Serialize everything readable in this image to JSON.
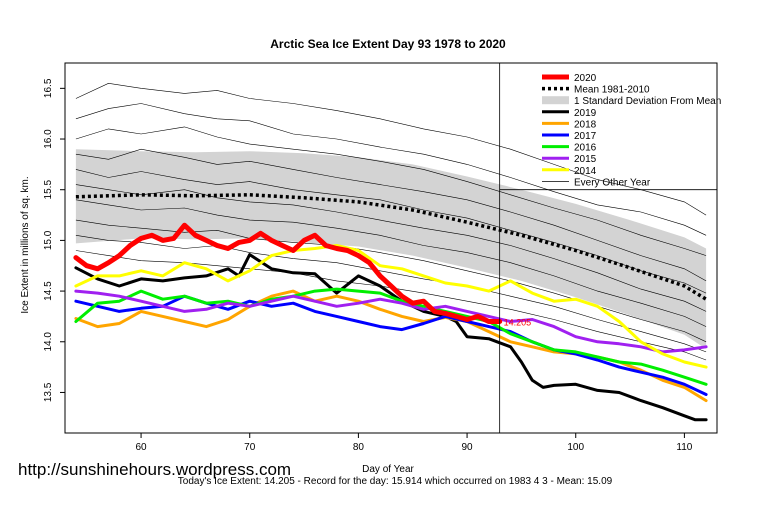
{
  "chart_data": {
    "type": "line",
    "title": "Arctic Sea Ice Extent Day 93 1978 to 2020",
    "xlabel": "Day of Year",
    "ylabel": "Ice Extent in millions of sq. km.",
    "xlim": [
      53,
      113
    ],
    "ylim": [
      13.1,
      16.75
    ],
    "x_ticks": [
      60,
      70,
      80,
      90,
      100,
      110
    ],
    "y_ticks": [
      13.5,
      14.0,
      14.5,
      15.0,
      15.5,
      16.0,
      16.5
    ],
    "current_day": 93,
    "crosshair_y": 15.5,
    "current_value_label": "14.205",
    "legend": [
      {
        "label": "2020",
        "color": "#ff0000",
        "style": "solid-thick"
      },
      {
        "label": "Mean 1981-2010",
        "color": "#000000",
        "style": "dotted"
      },
      {
        "label": "1 Standard Deviation From Mean",
        "color": "#d3d3d3",
        "style": "band"
      },
      {
        "label": "2019",
        "color": "#000000",
        "style": "solid"
      },
      {
        "label": "2018",
        "color": "#ffa500",
        "style": "solid"
      },
      {
        "label": "2017",
        "color": "#0000ff",
        "style": "solid"
      },
      {
        "label": "2016",
        "color": "#00ee00",
        "style": "solid"
      },
      {
        "label": "2015",
        "color": "#a020f0",
        "style": "solid"
      },
      {
        "label": "2014",
        "color": "#ffff00",
        "style": "solid"
      },
      {
        "label": "Every Other Year",
        "color": "#000000",
        "style": "thin"
      }
    ],
    "mean": {
      "x": [
        54,
        60,
        65,
        70,
        75,
        80,
        85,
        90,
        95,
        100,
        105,
        110,
        112
      ],
      "values": [
        15.43,
        15.45,
        15.44,
        15.45,
        15.42,
        15.38,
        15.3,
        15.18,
        15.05,
        14.9,
        14.73,
        14.55,
        14.42
      ]
    },
    "std_band": {
      "x": [
        54,
        60,
        65,
        70,
        75,
        80,
        85,
        90,
        95,
        100,
        105,
        110,
        112
      ],
      "upper": [
        15.9,
        15.88,
        15.87,
        15.88,
        15.86,
        15.82,
        15.75,
        15.63,
        15.5,
        15.36,
        15.2,
        15.03,
        14.92
      ],
      "lower": [
        14.97,
        15.02,
        15.01,
        15.02,
        14.98,
        14.94,
        14.85,
        14.73,
        14.6,
        14.44,
        14.26,
        14.07,
        13.93
      ]
    },
    "series": [
      {
        "name": "2019",
        "color": "#000000",
        "width": 3,
        "x": [
          54,
          56,
          58,
          60,
          62,
          64,
          66,
          68,
          69,
          70,
          72,
          74,
          76,
          78,
          80,
          82,
          84,
          86,
          88,
          89,
          90,
          92,
          93,
          94,
          95,
          96,
          97,
          98,
          100,
          102,
          104,
          106,
          108,
          110,
          111,
          112
        ],
        "values": [
          14.73,
          14.62,
          14.55,
          14.62,
          14.6,
          14.63,
          14.65,
          14.72,
          14.65,
          14.86,
          14.72,
          14.68,
          14.67,
          14.48,
          14.65,
          14.55,
          14.4,
          14.3,
          14.25,
          14.2,
          14.05,
          14.03,
          13.99,
          13.95,
          13.8,
          13.62,
          13.55,
          13.57,
          13.58,
          13.52,
          13.5,
          13.42,
          13.35,
          13.27,
          13.23,
          13.23
        ]
      },
      {
        "name": "2018",
        "color": "#ffa500",
        "width": 3,
        "x": [
          54,
          56,
          58,
          60,
          62,
          64,
          66,
          68,
          70,
          72,
          74,
          76,
          78,
          80,
          82,
          84,
          86,
          88,
          90,
          92,
          94,
          96,
          98,
          100,
          102,
          104,
          106,
          108,
          110,
          112
        ],
        "values": [
          14.23,
          14.15,
          14.18,
          14.3,
          14.25,
          14.2,
          14.15,
          14.22,
          14.35,
          14.45,
          14.5,
          14.4,
          14.45,
          14.4,
          14.32,
          14.25,
          14.2,
          14.24,
          14.2,
          14.1,
          14.0,
          13.95,
          13.9,
          13.88,
          13.85,
          13.8,
          13.72,
          13.62,
          13.55,
          13.42
        ]
      },
      {
        "name": "2017",
        "color": "#0000ff",
        "width": 3,
        "x": [
          54,
          56,
          58,
          60,
          62,
          64,
          66,
          68,
          70,
          72,
          74,
          76,
          78,
          80,
          82,
          84,
          86,
          88,
          90,
          92,
          94,
          96,
          98,
          100,
          102,
          104,
          106,
          108,
          110,
          112
        ],
        "values": [
          14.4,
          14.35,
          14.3,
          14.33,
          14.35,
          14.45,
          14.38,
          14.32,
          14.4,
          14.35,
          14.38,
          14.3,
          14.25,
          14.2,
          14.15,
          14.12,
          14.18,
          14.25,
          14.2,
          14.15,
          14.1,
          14.0,
          13.92,
          13.88,
          13.82,
          13.75,
          13.7,
          13.65,
          13.58,
          13.48
        ]
      },
      {
        "name": "2016",
        "color": "#00ee00",
        "width": 3,
        "x": [
          54,
          56,
          58,
          60,
          62,
          64,
          66,
          68,
          70,
          72,
          74,
          76,
          78,
          80,
          82,
          84,
          86,
          88,
          90,
          92,
          94,
          96,
          98,
          100,
          102,
          104,
          106,
          108,
          110,
          112
        ],
        "values": [
          14.2,
          14.38,
          14.4,
          14.5,
          14.42,
          14.45,
          14.38,
          14.4,
          14.35,
          14.42,
          14.45,
          14.5,
          14.52,
          14.5,
          14.48,
          14.4,
          14.35,
          14.3,
          14.25,
          14.2,
          14.08,
          14.0,
          13.92,
          13.9,
          13.85,
          13.8,
          13.78,
          13.72,
          13.65,
          13.58
        ]
      },
      {
        "name": "2015",
        "color": "#a020f0",
        "width": 3,
        "x": [
          54,
          56,
          58,
          60,
          62,
          64,
          66,
          68,
          70,
          72,
          74,
          76,
          78,
          80,
          82,
          84,
          86,
          88,
          90,
          92,
          94,
          96,
          98,
          100,
          102,
          104,
          106,
          108,
          110,
          112
        ],
        "values": [
          14.5,
          14.48,
          14.45,
          14.4,
          14.35,
          14.3,
          14.32,
          14.38,
          14.35,
          14.4,
          14.45,
          14.4,
          14.35,
          14.38,
          14.42,
          14.38,
          14.32,
          14.35,
          14.3,
          14.25,
          14.2,
          14.22,
          14.15,
          14.05,
          14.0,
          13.98,
          13.95,
          13.9,
          13.92,
          13.95
        ]
      },
      {
        "name": "2014",
        "color": "#ffff00",
        "width": 3,
        "x": [
          54,
          56,
          58,
          60,
          62,
          64,
          66,
          68,
          70,
          72,
          74,
          76,
          78,
          80,
          82,
          84,
          86,
          88,
          90,
          92,
          94,
          96,
          98,
          100,
          102,
          104,
          106,
          108,
          110,
          112
        ],
        "values": [
          14.55,
          14.65,
          14.65,
          14.7,
          14.65,
          14.78,
          14.72,
          14.6,
          14.7,
          14.85,
          14.9,
          14.92,
          14.95,
          14.9,
          14.75,
          14.72,
          14.65,
          14.58,
          14.55,
          14.5,
          14.6,
          14.48,
          14.4,
          14.42,
          14.35,
          14.2,
          14.0,
          13.88,
          13.8,
          13.75
        ]
      },
      {
        "name": "2020",
        "color": "#ff0000",
        "width": 5,
        "x": [
          54,
          55,
          56,
          57,
          58,
          59,
          60,
          61,
          62,
          63,
          64,
          65,
          66,
          67,
          68,
          69,
          70,
          71,
          72,
          73,
          74,
          75,
          76,
          77,
          78,
          79,
          80,
          81,
          82,
          83,
          84,
          85,
          86,
          87,
          88,
          89,
          90,
          91,
          92,
          93
        ],
        "values": [
          14.83,
          14.75,
          14.72,
          14.78,
          14.85,
          14.95,
          15.02,
          15.05,
          15.0,
          15.02,
          15.15,
          15.05,
          15.0,
          14.95,
          14.92,
          14.98,
          15.0,
          15.07,
          15.0,
          14.95,
          14.9,
          15.0,
          15.05,
          14.95,
          14.92,
          14.9,
          14.85,
          14.78,
          14.65,
          14.55,
          14.45,
          14.38,
          14.4,
          14.3,
          14.28,
          14.25,
          14.22,
          14.25,
          14.2,
          14.2
        ]
      }
    ],
    "background_years": [
      {
        "x": [
          54,
          57,
          60,
          64,
          67,
          70,
          74,
          78,
          82,
          86,
          90,
          94,
          98,
          102,
          106,
          110,
          112
        ],
        "values": [
          16.4,
          16.55,
          16.5,
          16.45,
          16.48,
          16.4,
          16.35,
          16.28,
          16.2,
          16.1,
          16.02,
          15.9,
          15.75,
          15.6,
          15.5,
          15.38,
          15.25
        ]
      },
      {
        "x": [
          54,
          57,
          60,
          64,
          67,
          70,
          74,
          78,
          82,
          86,
          90,
          94,
          98,
          102,
          106,
          110,
          112
        ],
        "values": [
          16.2,
          16.3,
          16.35,
          16.25,
          16.2,
          16.18,
          16.05,
          16.0,
          15.92,
          15.85,
          15.75,
          15.62,
          15.48,
          15.35,
          15.28,
          15.15,
          15.05
        ]
      },
      {
        "x": [
          54,
          57,
          60,
          64,
          67,
          70,
          74,
          78,
          82,
          86,
          90,
          94,
          98,
          102,
          106,
          110,
          112
        ],
        "values": [
          16.0,
          16.1,
          16.05,
          16.12,
          16.02,
          15.95,
          15.9,
          15.85,
          15.78,
          15.7,
          15.58,
          15.45,
          15.32,
          15.2,
          15.05,
          14.92,
          14.85
        ]
      },
      {
        "x": [
          54,
          57,
          60,
          64,
          67,
          70,
          74,
          78,
          82,
          86,
          90,
          94,
          98,
          102,
          106,
          110,
          112
        ],
        "values": [
          15.85,
          15.8,
          15.9,
          15.82,
          15.75,
          15.78,
          15.7,
          15.62,
          15.55,
          15.48,
          15.4,
          15.28,
          15.15,
          15.0,
          14.85,
          14.72,
          14.6
        ]
      },
      {
        "x": [
          54,
          57,
          60,
          64,
          67,
          70,
          74,
          78,
          82,
          86,
          90,
          94,
          98,
          102,
          106,
          110,
          112
        ],
        "values": [
          15.7,
          15.62,
          15.68,
          15.6,
          15.55,
          15.58,
          15.5,
          15.45,
          15.4,
          15.3,
          15.22,
          15.1,
          14.98,
          14.85,
          14.7,
          14.58,
          14.48
        ]
      },
      {
        "x": [
          54,
          57,
          60,
          64,
          67,
          70,
          74,
          78,
          82,
          86,
          90,
          94,
          98,
          102,
          106,
          110,
          112
        ],
        "values": [
          15.55,
          15.5,
          15.45,
          15.5,
          15.42,
          15.38,
          15.35,
          15.28,
          15.2,
          15.12,
          15.05,
          14.95,
          14.82,
          14.68,
          14.52,
          14.4,
          14.3
        ]
      },
      {
        "x": [
          54,
          57,
          60,
          64,
          67,
          70,
          74,
          78,
          82,
          86,
          90,
          94,
          98,
          102,
          106,
          110,
          112
        ],
        "values": [
          15.4,
          15.35,
          15.3,
          15.32,
          15.25,
          15.2,
          15.18,
          15.12,
          15.05,
          14.95,
          14.88,
          14.78,
          14.65,
          14.5,
          14.38,
          14.25,
          14.15
        ]
      },
      {
        "x": [
          54,
          57,
          60,
          64,
          67,
          70,
          74,
          78,
          82,
          86,
          90,
          94,
          98,
          102,
          106,
          110,
          112
        ],
        "values": [
          15.2,
          15.15,
          15.12,
          15.08,
          15.1,
          15.02,
          14.98,
          14.95,
          14.88,
          14.8,
          14.7,
          14.6,
          14.48,
          14.35,
          14.22,
          14.1,
          14.0
        ]
      },
      {
        "x": [
          54,
          57,
          60,
          64,
          67,
          70,
          74,
          78,
          82,
          86,
          90,
          94,
          98,
          102,
          106,
          110,
          112
        ],
        "values": [
          15.05,
          15.0,
          14.98,
          14.92,
          14.95,
          14.88,
          14.82,
          14.78,
          14.7,
          14.62,
          14.55,
          14.45,
          14.35,
          14.22,
          14.1,
          13.98,
          13.9
        ]
      },
      {
        "x": [
          54,
          57,
          60,
          64,
          67,
          70,
          74,
          78,
          82,
          86,
          90,
          94,
          98,
          102,
          106,
          110,
          112
        ],
        "values": [
          14.9,
          14.85,
          14.8,
          14.78,
          14.75,
          14.72,
          14.68,
          14.6,
          14.55,
          14.48,
          14.4,
          14.32,
          14.22,
          14.1,
          14.0,
          13.9,
          13.82
        ]
      }
    ]
  },
  "watermark": "http://sunshinehours.wordpress.com",
  "footer": "Today's Ice Extent: 14.205  - Record for the day: 15.914 which occurred on 1983 4 3  - Mean: 15.09"
}
